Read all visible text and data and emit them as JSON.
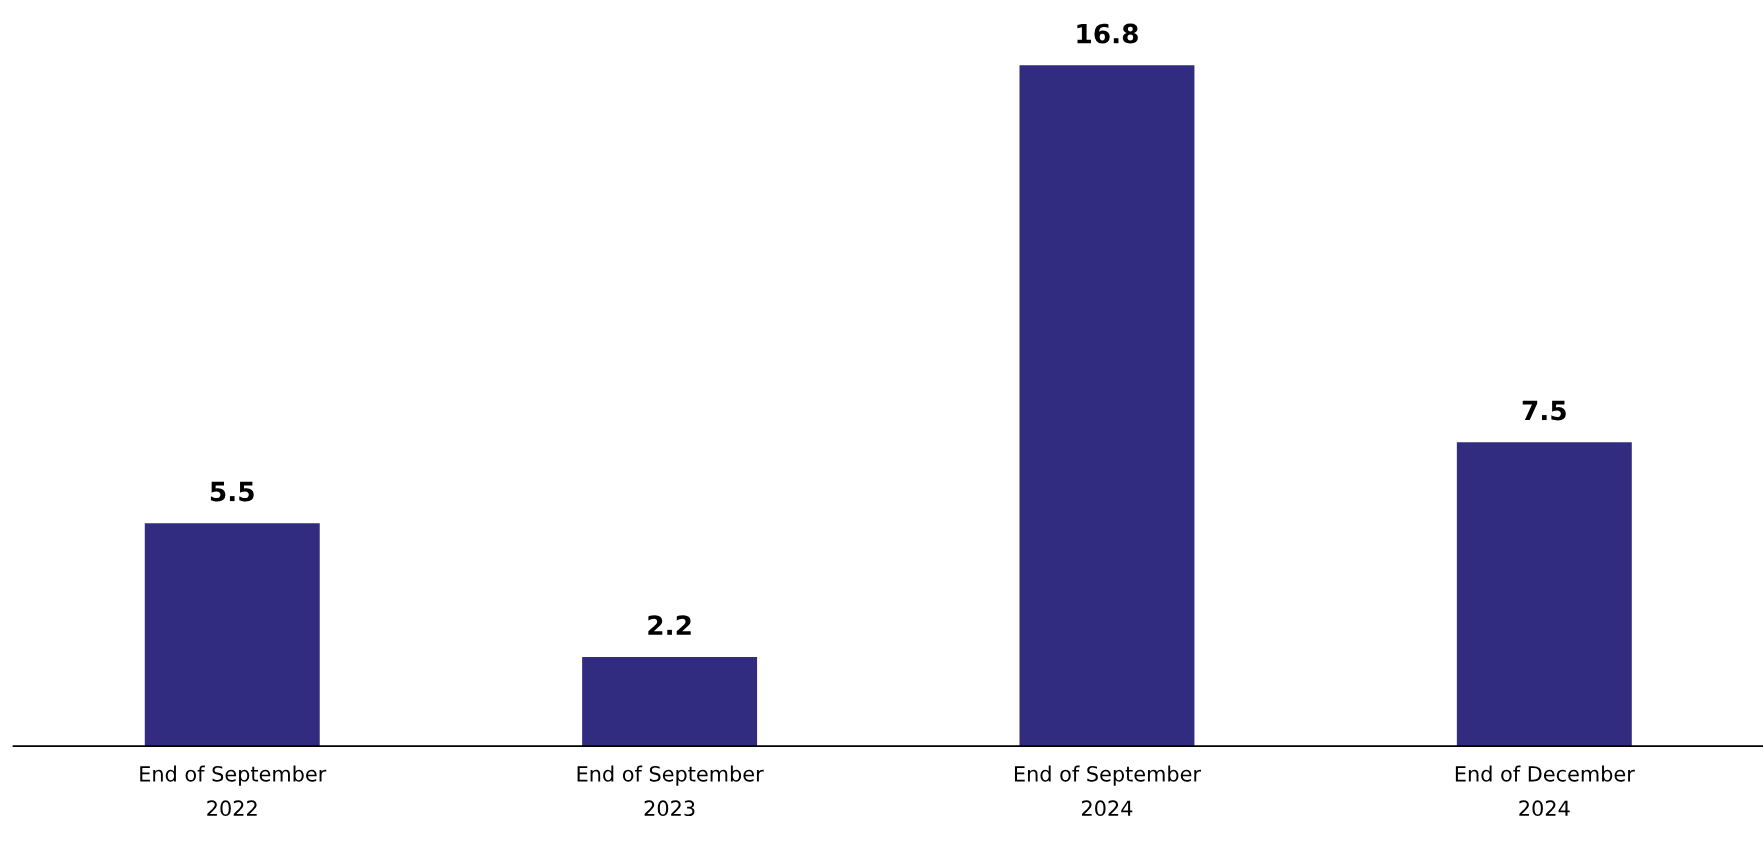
{
  "chart_data": {
    "type": "bar",
    "categories": [
      "End of September\n2022",
      "End of September\n2023",
      "End of September\n2024",
      "End of December\n2024"
    ],
    "values": [
      5.5,
      2.2,
      16.8,
      7.5
    ],
    "color": "#312c80",
    "data_labels": true,
    "grid": false,
    "legend": false
  }
}
